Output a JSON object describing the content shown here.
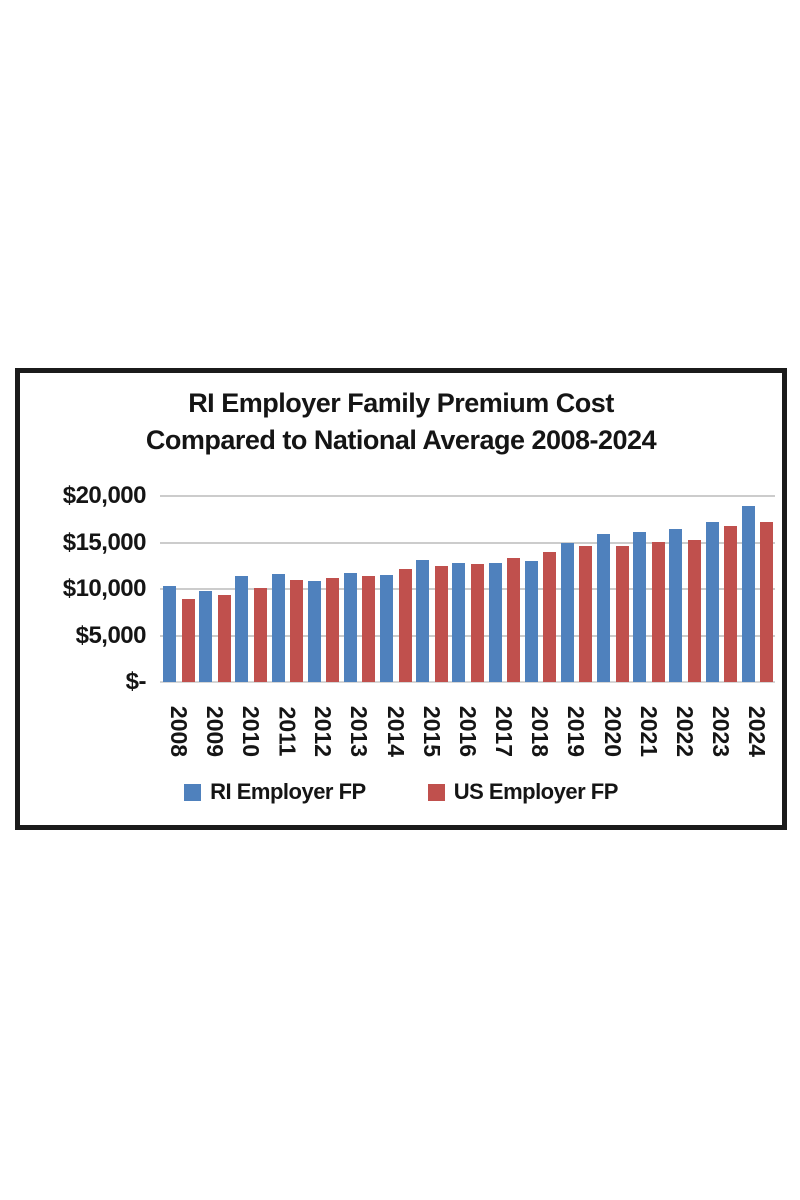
{
  "page": {
    "background": "#ffffff"
  },
  "frame": {
    "border_color": "#1b1b1b"
  },
  "chart_data": {
    "type": "bar",
    "title_line1": "RI Employer Family Premium Cost",
    "title_line2": "Compared to National Average 2008-2024",
    "categories": [
      "2008",
      "2009",
      "2010",
      "2011",
      "2012",
      "2013",
      "2014",
      "2015",
      "2016",
      "2017",
      "2018",
      "2019",
      "2020",
      "2021",
      "2022",
      "2023",
      "2024"
    ],
    "series": [
      {
        "name": "RI Employer FP",
        "color": "#4f81bd",
        "values": [
          10300,
          9800,
          11400,
          11600,
          10900,
          11700,
          11500,
          13100,
          12800,
          12800,
          13000,
          15000,
          15900,
          16100,
          16500,
          17200,
          18900
        ]
      },
      {
        "name": "US Employer FP",
        "color": "#c0504d",
        "values": [
          8900,
          9400,
          10100,
          11000,
          11200,
          11400,
          12100,
          12500,
          12700,
          13300,
          14000,
          14600,
          14600,
          15100,
          15300,
          16800,
          17200
        ]
      }
    ],
    "y_ticks": [
      {
        "label": "$20,000",
        "value": 20000
      },
      {
        "label": "$15,000",
        "value": 15000
      },
      {
        "label": "$10,000",
        "value": 10000
      },
      {
        "label": "$5,000",
        "value": 5000
      },
      {
        "label": "$-",
        "value": 0
      }
    ],
    "ylim": [
      0,
      20000
    ],
    "grid": true,
    "legend_position": "bottom",
    "gridline_color": "#cccccc",
    "text_color": "#151515"
  }
}
